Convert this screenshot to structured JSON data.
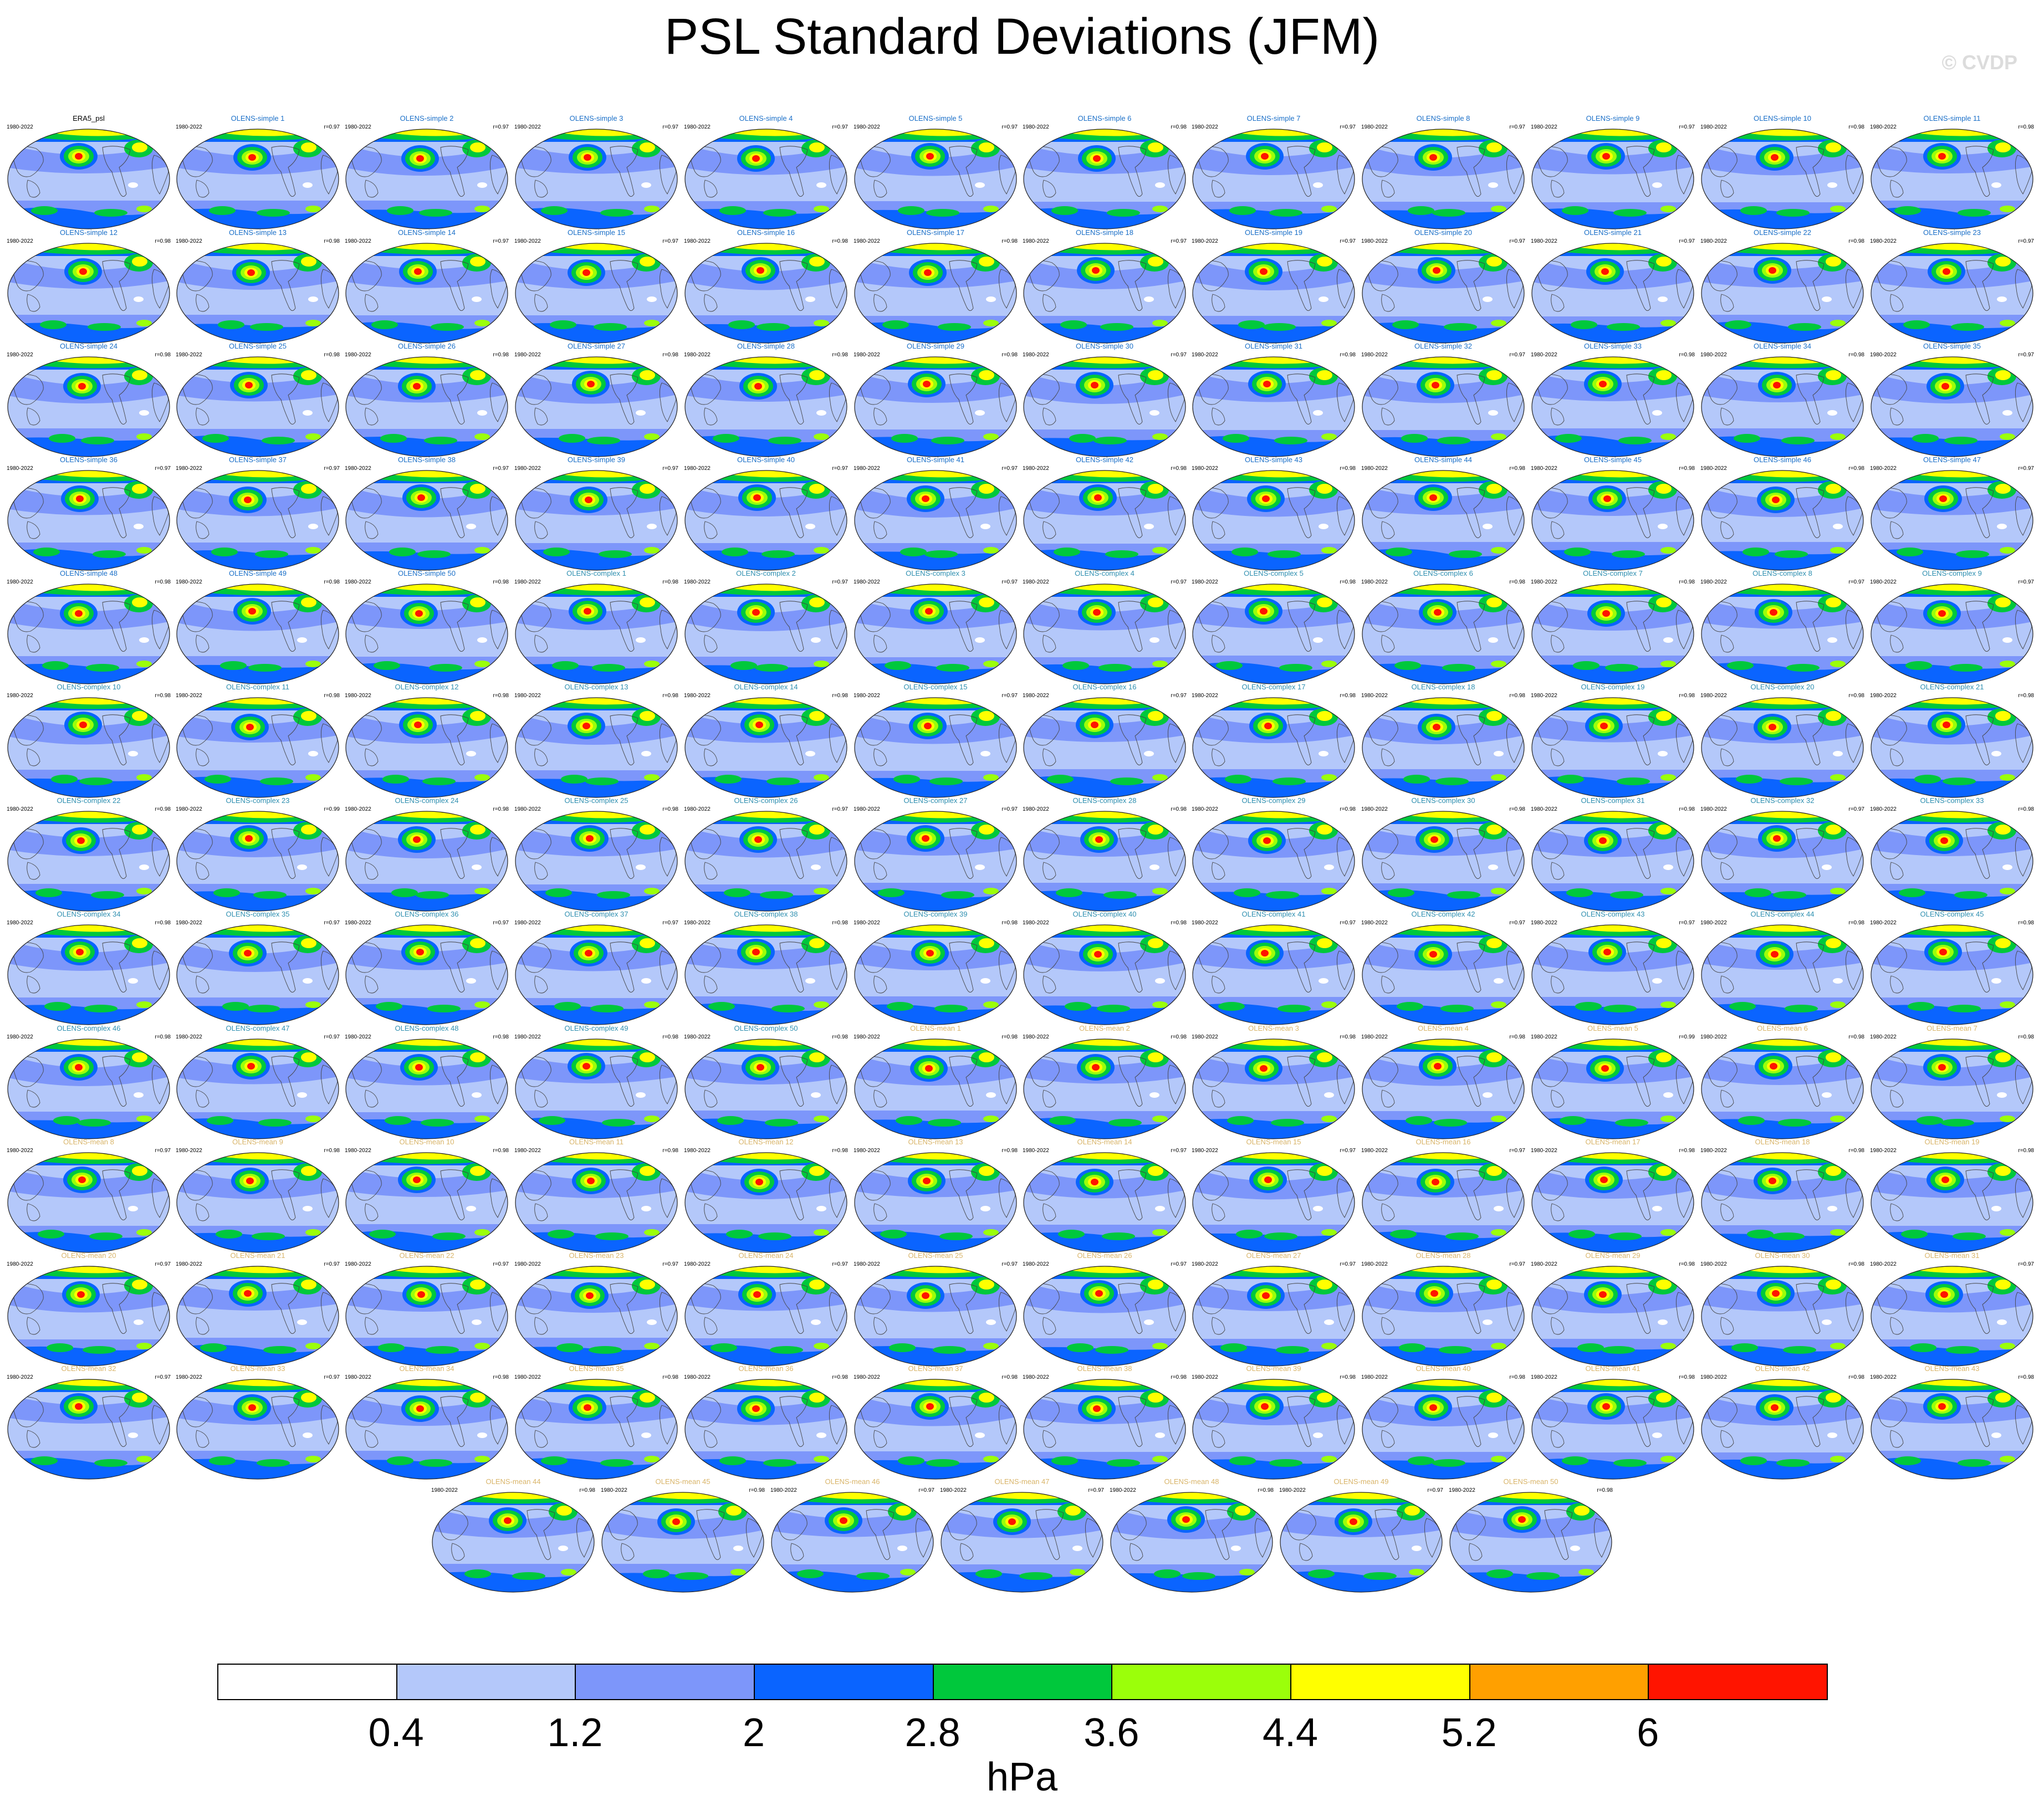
{
  "title": "PSL Standard Deviations (JFM)",
  "watermark": "© CVDP",
  "chart_data": {
    "type": "heatmap",
    "description_variable": "PSL standard deviation",
    "season": "JFM",
    "period": "1980-2022",
    "units": "hPa",
    "colorbar": {
      "levels": [
        0.4,
        1.2,
        2,
        2.8,
        3.6,
        4.4,
        5.2,
        6
      ],
      "labels": [
        "0.4",
        "1.2",
        "2",
        "2.8",
        "3.6",
        "4.4",
        "5.2",
        "6"
      ],
      "colors": [
        "#ffffff",
        "#b4c8fa",
        "#7d96fa",
        "#0a64ff",
        "#00c83c",
        "#9bff0a",
        "#ffff00",
        "#ffa000",
        "#ff1400"
      ],
      "units_label": "hPa"
    },
    "panels": [
      {
        "title": "ERA5_psl",
        "years": "1980-2022",
        "r": ""
      },
      {
        "title": "OLENS-simple 1",
        "years": "1980-2022",
        "r": "r=0.97"
      },
      {
        "title": "OLENS-simple 2",
        "years": "1980-2022",
        "r": "r=0.97"
      },
      {
        "title": "OLENS-simple 3",
        "years": "1980-2022",
        "r": "r=0.97"
      },
      {
        "title": "OLENS-simple 4",
        "years": "1980-2022",
        "r": "r=0.97"
      },
      {
        "title": "OLENS-simple 5",
        "years": "1980-2022",
        "r": "r=0.97"
      },
      {
        "title": "OLENS-simple 6",
        "years": "1980-2022",
        "r": "r=0.98"
      },
      {
        "title": "OLENS-simple 7",
        "years": "1980-2022",
        "r": "r=0.97"
      },
      {
        "title": "OLENS-simple 8",
        "years": "1980-2022",
        "r": "r=0.97"
      },
      {
        "title": "OLENS-simple 9",
        "years": "1980-2022",
        "r": "r=0.97"
      },
      {
        "title": "OLENS-simple 10",
        "years": "1980-2022",
        "r": "r=0.98"
      },
      {
        "title": "OLENS-simple 11",
        "years": "1980-2022",
        "r": "r=0.98"
      },
      {
        "title": "OLENS-simple 12",
        "years": "1980-2022",
        "r": "r=0.98"
      },
      {
        "title": "OLENS-simple 13",
        "years": "1980-2022",
        "r": "r=0.98"
      },
      {
        "title": "OLENS-simple 14",
        "years": "1980-2022",
        "r": "r=0.97"
      },
      {
        "title": "OLENS-simple 15",
        "years": "1980-2022",
        "r": "r=0.97"
      },
      {
        "title": "OLENS-simple 16",
        "years": "1980-2022",
        "r": "r=0.98"
      },
      {
        "title": "OLENS-simple 17",
        "years": "1980-2022",
        "r": "r=0.98"
      },
      {
        "title": "OLENS-simple 18",
        "years": "1980-2022",
        "r": "r=0.97"
      },
      {
        "title": "OLENS-simple 19",
        "years": "1980-2022",
        "r": "r=0.97"
      },
      {
        "title": "OLENS-simple 20",
        "years": "1980-2022",
        "r": "r=0.97"
      },
      {
        "title": "OLENS-simple 21",
        "years": "1980-2022",
        "r": "r=0.97"
      },
      {
        "title": "OLENS-simple 22",
        "years": "1980-2022",
        "r": "r=0.98"
      },
      {
        "title": "OLENS-simple 23",
        "years": "1980-2022",
        "r": "r=0.97"
      },
      {
        "title": "OLENS-simple 24",
        "years": "1980-2022",
        "r": "r=0.98"
      },
      {
        "title": "OLENS-simple 25",
        "years": "1980-2022",
        "r": "r=0.98"
      },
      {
        "title": "OLENS-simple 26",
        "years": "1980-2022",
        "r": "r=0.98"
      },
      {
        "title": "OLENS-simple 27",
        "years": "1980-2022",
        "r": "r=0.98"
      },
      {
        "title": "OLENS-simple 28",
        "years": "1980-2022",
        "r": "r=0.98"
      },
      {
        "title": "OLENS-simple 29",
        "years": "1980-2022",
        "r": "r=0.98"
      },
      {
        "title": "OLENS-simple 30",
        "years": "1980-2022",
        "r": "r=0.97"
      },
      {
        "title": "OLENS-simple 31",
        "years": "1980-2022",
        "r": "r=0.98"
      },
      {
        "title": "OLENS-simple 32",
        "years": "1980-2022",
        "r": "r=0.97"
      },
      {
        "title": "OLENS-simple 33",
        "years": "1980-2022",
        "r": "r=0.98"
      },
      {
        "title": "OLENS-simple 34",
        "years": "1980-2022",
        "r": "r=0.98"
      },
      {
        "title": "OLENS-simple 35",
        "years": "1980-2022",
        "r": "r=0.97"
      },
      {
        "title": "OLENS-simple 36",
        "years": "1980-2022",
        "r": "r=0.97"
      },
      {
        "title": "OLENS-simple 37",
        "years": "1980-2022",
        "r": "r=0.97"
      },
      {
        "title": "OLENS-simple 38",
        "years": "1980-2022",
        "r": "r=0.97"
      },
      {
        "title": "OLENS-simple 39",
        "years": "1980-2022",
        "r": "r=0.97"
      },
      {
        "title": "OLENS-simple 40",
        "years": "1980-2022",
        "r": "r=0.97"
      },
      {
        "title": "OLENS-simple 41",
        "years": "1980-2022",
        "r": "r=0.97"
      },
      {
        "title": "OLENS-simple 42",
        "years": "1980-2022",
        "r": "r=0.98"
      },
      {
        "title": "OLENS-simple 43",
        "years": "1980-2022",
        "r": "r=0.98"
      },
      {
        "title": "OLENS-simple 44",
        "years": "1980-2022",
        "r": "r=0.98"
      },
      {
        "title": "OLENS-simple 45",
        "years": "1980-2022",
        "r": "r=0.98"
      },
      {
        "title": "OLENS-simple 46",
        "years": "1980-2022",
        "r": "r=0.98"
      },
      {
        "title": "OLENS-simple 47",
        "years": "1980-2022",
        "r": "r=0.97"
      },
      {
        "title": "OLENS-simple 48",
        "years": "1980-2022",
        "r": "r=0.98"
      },
      {
        "title": "OLENS-simple 49",
        "years": "1980-2022",
        "r": "r=0.98"
      },
      {
        "title": "OLENS-simple 50",
        "years": "1980-2022",
        "r": "r=0.98"
      },
      {
        "title": "OLENS-complex 1",
        "years": "1980-2022",
        "r": "r=0.98"
      },
      {
        "title": "OLENS-complex 2",
        "years": "1980-2022",
        "r": "r=0.97"
      },
      {
        "title": "OLENS-complex 3",
        "years": "1980-2022",
        "r": "r=0.97"
      },
      {
        "title": "OLENS-complex 4",
        "years": "1980-2022",
        "r": "r=0.97"
      },
      {
        "title": "OLENS-complex 5",
        "years": "1980-2022",
        "r": "r=0.98"
      },
      {
        "title": "OLENS-complex 6",
        "years": "1980-2022",
        "r": "r=0.98"
      },
      {
        "title": "OLENS-complex 7",
        "years": "1980-2022",
        "r": "r=0.98"
      },
      {
        "title": "OLENS-complex 8",
        "years": "1980-2022",
        "r": "r=0.97"
      },
      {
        "title": "OLENS-complex 9",
        "years": "1980-2022",
        "r": "r=0.97"
      },
      {
        "title": "OLENS-complex 10",
        "years": "1980-2022",
        "r": "r=0.98"
      },
      {
        "title": "OLENS-complex 11",
        "years": "1980-2022",
        "r": "r=0.98"
      },
      {
        "title": "OLENS-complex 12",
        "years": "1980-2022",
        "r": "r=0.98"
      },
      {
        "title": "OLENS-complex 13",
        "years": "1980-2022",
        "r": "r=0.98"
      },
      {
        "title": "OLENS-complex 14",
        "years": "1980-2022",
        "r": "r=0.98"
      },
      {
        "title": "OLENS-complex 15",
        "years": "1980-2022",
        "r": "r=0.97"
      },
      {
        "title": "OLENS-complex 16",
        "years": "1980-2022",
        "r": "r=0.97"
      },
      {
        "title": "OLENS-complex 17",
        "years": "1980-2022",
        "r": "r=0.98"
      },
      {
        "title": "OLENS-complex 18",
        "years": "1980-2022",
        "r": "r=0.98"
      },
      {
        "title": "OLENS-complex 19",
        "years": "1980-2022",
        "r": "r=0.98"
      },
      {
        "title": "OLENS-complex 20",
        "years": "1980-2022",
        "r": "r=0.98"
      },
      {
        "title": "OLENS-complex 21",
        "years": "1980-2022",
        "r": "r=0.98"
      },
      {
        "title": "OLENS-complex 22",
        "years": "1980-2022",
        "r": "r=0.98"
      },
      {
        "title": "OLENS-complex 23",
        "years": "1980-2022",
        "r": "r=0.99"
      },
      {
        "title": "OLENS-complex 24",
        "years": "1980-2022",
        "r": "r=0.98"
      },
      {
        "title": "OLENS-complex 25",
        "years": "1980-2022",
        "r": "r=0.98"
      },
      {
        "title": "OLENS-complex 26",
        "years": "1980-2022",
        "r": "r=0.97"
      },
      {
        "title": "OLENS-complex 27",
        "years": "1980-2022",
        "r": "r=0.97"
      },
      {
        "title": "OLENS-complex 28",
        "years": "1980-2022",
        "r": "r=0.98"
      },
      {
        "title": "OLENS-complex 29",
        "years": "1980-2022",
        "r": "r=0.98"
      },
      {
        "title": "OLENS-complex 30",
        "years": "1980-2022",
        "r": "r=0.98"
      },
      {
        "title": "OLENS-complex 31",
        "years": "1980-2022",
        "r": "r=0.98"
      },
      {
        "title": "OLENS-complex 32",
        "years": "1980-2022",
        "r": "r=0.97"
      },
      {
        "title": "OLENS-complex 33",
        "years": "1980-2022",
        "r": "r=0.98"
      },
      {
        "title": "OLENS-complex 34",
        "years": "1980-2022",
        "r": "r=0.98"
      },
      {
        "title": "OLENS-complex 35",
        "years": "1980-2022",
        "r": "r=0.97"
      },
      {
        "title": "OLENS-complex 36",
        "years": "1980-2022",
        "r": "r=0.97"
      },
      {
        "title": "OLENS-complex 37",
        "years": "1980-2022",
        "r": "r=0.97"
      },
      {
        "title": "OLENS-complex 38",
        "years": "1980-2022",
        "r": "r=0.98"
      },
      {
        "title": "OLENS-complex 39",
        "years": "1980-2022",
        "r": "r=0.98"
      },
      {
        "title": "OLENS-complex 40",
        "years": "1980-2022",
        "r": "r=0.98"
      },
      {
        "title": "OLENS-complex 41",
        "years": "1980-2022",
        "r": "r=0.97"
      },
      {
        "title": "OLENS-complex 42",
        "years": "1980-2022",
        "r": "r=0.97"
      },
      {
        "title": "OLENS-complex 43",
        "years": "1980-2022",
        "r": "r=0.97"
      },
      {
        "title": "OLENS-complex 44",
        "years": "1980-2022",
        "r": "r=0.98"
      },
      {
        "title": "OLENS-complex 45",
        "years": "1980-2022",
        "r": "r=0.98"
      },
      {
        "title": "OLENS-complex 46",
        "years": "1980-2022",
        "r": "r=0.98"
      },
      {
        "title": "OLENS-complex 47",
        "years": "1980-2022",
        "r": "r=0.97"
      },
      {
        "title": "OLENS-complex 48",
        "years": "1980-2022",
        "r": "r=0.98"
      },
      {
        "title": "OLENS-complex 49",
        "years": "1980-2022",
        "r": "r=0.98"
      },
      {
        "title": "OLENS-complex 50",
        "years": "1980-2022",
        "r": "r=0.98"
      },
      {
        "title": "OLENS-mean 1",
        "years": "1980-2022",
        "r": "r=0.98"
      },
      {
        "title": "OLENS-mean 2",
        "years": "1980-2022",
        "r": "r=0.98"
      },
      {
        "title": "OLENS-mean 3",
        "years": "1980-2022",
        "r": "r=0.98"
      },
      {
        "title": "OLENS-mean 4",
        "years": "1980-2022",
        "r": "r=0.98"
      },
      {
        "title": "OLENS-mean 5",
        "years": "1980-2022",
        "r": "r=0.99"
      },
      {
        "title": "OLENS-mean 6",
        "years": "1980-2022",
        "r": "r=0.98"
      },
      {
        "title": "OLENS-mean 7",
        "years": "1980-2022",
        "r": "r=0.98"
      },
      {
        "title": "OLENS-mean 8",
        "years": "1980-2022",
        "r": "r=0.97"
      },
      {
        "title": "OLENS-mean 9",
        "years": "1980-2022",
        "r": "r=0.98"
      },
      {
        "title": "OLENS-mean 10",
        "years": "1980-2022",
        "r": "r=0.98"
      },
      {
        "title": "OLENS-mean 11",
        "years": "1980-2022",
        "r": "r=0.98"
      },
      {
        "title": "OLENS-mean 12",
        "years": "1980-2022",
        "r": "r=0.98"
      },
      {
        "title": "OLENS-mean 13",
        "years": "1980-2022",
        "r": "r=0.98"
      },
      {
        "title": "OLENS-mean 14",
        "years": "1980-2022",
        "r": "r=0.97"
      },
      {
        "title": "OLENS-mean 15",
        "years": "1980-2022",
        "r": "r=0.97"
      },
      {
        "title": "OLENS-mean 16",
        "years": "1980-2022",
        "r": "r=0.97"
      },
      {
        "title": "OLENS-mean 17",
        "years": "1980-2022",
        "r": "r=0.98"
      },
      {
        "title": "OLENS-mean 18",
        "years": "1980-2022",
        "r": "r=0.98"
      },
      {
        "title": "OLENS-mean 19",
        "years": "1980-2022",
        "r": "r=0.98"
      },
      {
        "title": "OLENS-mean 20",
        "years": "1980-2022",
        "r": "r=0.97"
      },
      {
        "title": "OLENS-mean 21",
        "years": "1980-2022",
        "r": "r=0.97"
      },
      {
        "title": "OLENS-mean 22",
        "years": "1980-2022",
        "r": "r=0.97"
      },
      {
        "title": "OLENS-mean 23",
        "years": "1980-2022",
        "r": "r=0.97"
      },
      {
        "title": "OLENS-mean 24",
        "years": "1980-2022",
        "r": "r=0.97"
      },
      {
        "title": "OLENS-mean 25",
        "years": "1980-2022",
        "r": "r=0.97"
      },
      {
        "title": "OLENS-mean 26",
        "years": "1980-2022",
        "r": "r=0.97"
      },
      {
        "title": "OLENS-mean 27",
        "years": "1980-2022",
        "r": "r=0.97"
      },
      {
        "title": "OLENS-mean 28",
        "years": "1980-2022",
        "r": "r=0.97"
      },
      {
        "title": "OLENS-mean 29",
        "years": "1980-2022",
        "r": "r=0.98"
      },
      {
        "title": "OLENS-mean 30",
        "years": "1980-2022",
        "r": "r=0.98"
      },
      {
        "title": "OLENS-mean 31",
        "years": "1980-2022",
        "r": "r=0.97"
      },
      {
        "title": "OLENS-mean 32",
        "years": "1980-2022",
        "r": "r=0.97"
      },
      {
        "title": "OLENS-mean 33",
        "years": "1980-2022",
        "r": "r=0.97"
      },
      {
        "title": "OLENS-mean 34",
        "years": "1980-2022",
        "r": "r=0.98"
      },
      {
        "title": "OLENS-mean 35",
        "years": "1980-2022",
        "r": "r=0.98"
      },
      {
        "title": "OLENS-mean 36",
        "years": "1980-2022",
        "r": "r=0.98"
      },
      {
        "title": "OLENS-mean 37",
        "years": "1980-2022",
        "r": "r=0.98"
      },
      {
        "title": "OLENS-mean 38",
        "years": "1980-2022",
        "r": "r=0.98"
      },
      {
        "title": "OLENS-mean 39",
        "years": "1980-2022",
        "r": "r=0.98"
      },
      {
        "title": "OLENS-mean 40",
        "years": "1980-2022",
        "r": "r=0.98"
      },
      {
        "title": "OLENS-mean 41",
        "years": "1980-2022",
        "r": "r=0.98"
      },
      {
        "title": "OLENS-mean 42",
        "years": "1980-2022",
        "r": "r=0.98"
      },
      {
        "title": "OLENS-mean 43",
        "years": "1980-2022",
        "r": "r=0.98"
      },
      {
        "title": "OLENS-mean 44",
        "years": "1980-2022",
        "r": "r=0.98"
      },
      {
        "title": "OLENS-mean 45",
        "years": "1980-2022",
        "r": "r=0.98"
      },
      {
        "title": "OLENS-mean 46",
        "years": "1980-2022",
        "r": "r=0.97"
      },
      {
        "title": "OLENS-mean 47",
        "years": "1980-2022",
        "r": "r=0.97"
      },
      {
        "title": "OLENS-mean 48",
        "years": "1980-2022",
        "r": "r=0.98"
      },
      {
        "title": "OLENS-mean 49",
        "years": "1980-2022",
        "r": "r=0.97"
      },
      {
        "title": "OLENS-mean 50",
        "years": "1980-2022",
        "r": "r=0.98"
      }
    ]
  }
}
